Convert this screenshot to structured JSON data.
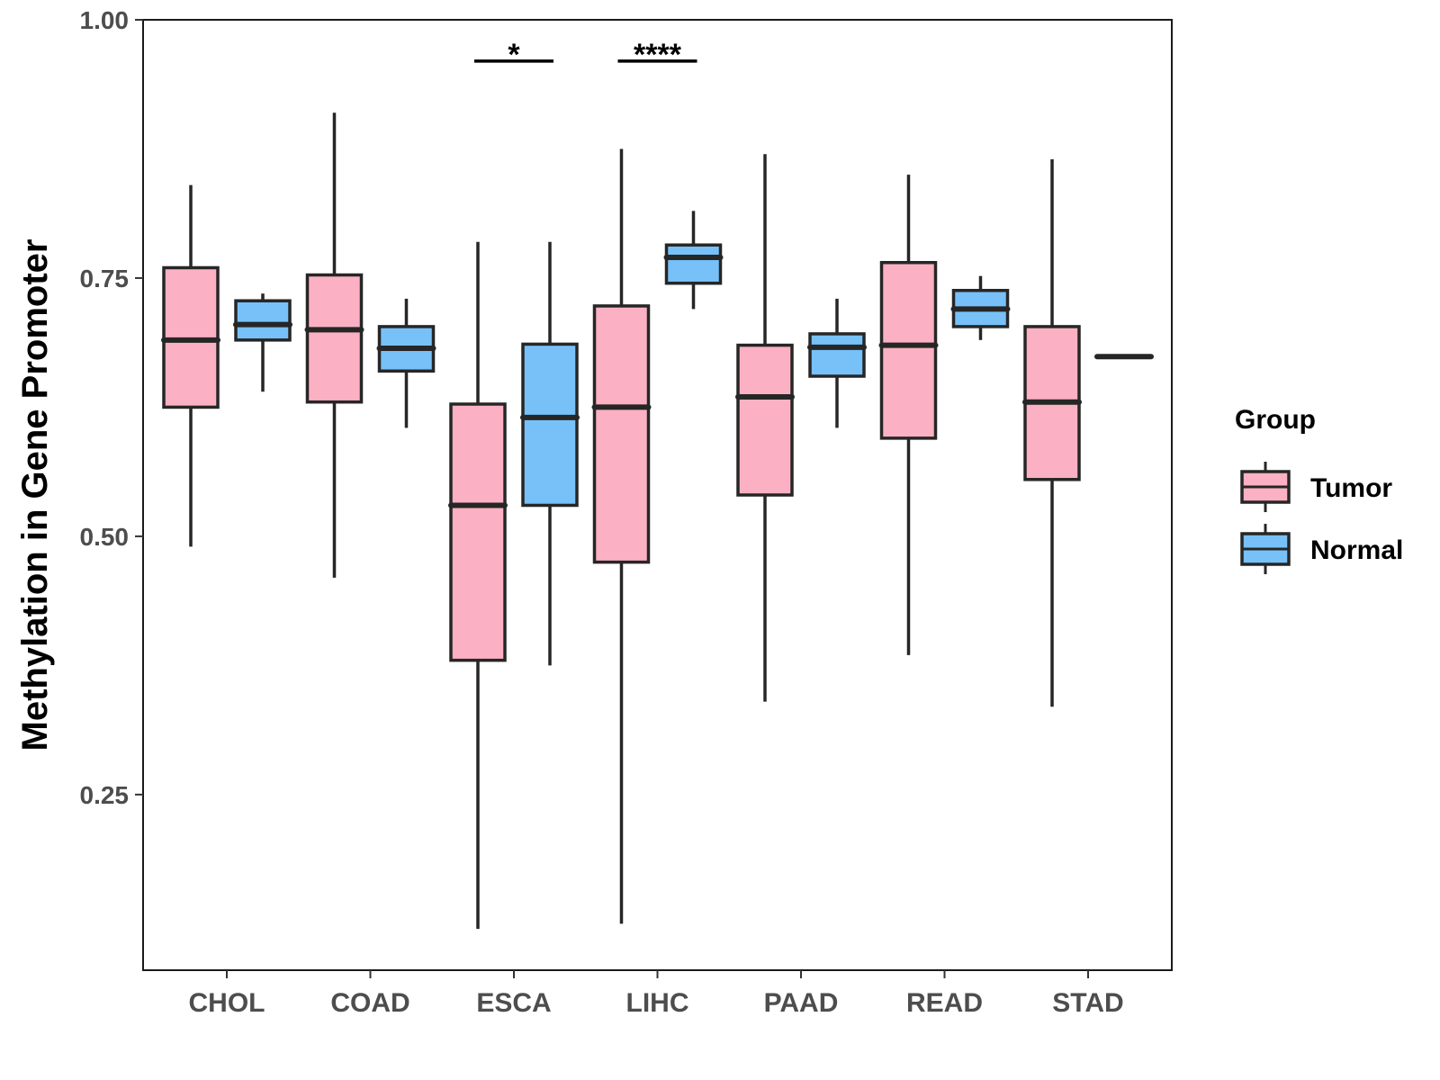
{
  "chart_data": {
    "type": "boxplot",
    "title": "",
    "xlabel": "",
    "ylabel": "Methylation in Gene Promoter",
    "ylim": [
      0.08,
      1.0
    ],
    "y_ticks": [
      0.25,
      0.5,
      0.75,
      1.0
    ],
    "y_tick_labels": [
      "0.25",
      "0.50",
      "0.75",
      "1.00"
    ],
    "grid": false,
    "legend_position": "right",
    "legend_title": "Group",
    "categories": [
      "CHOL",
      "COAD",
      "ESCA",
      "LIHC",
      "PAAD",
      "READ",
      "STAD"
    ],
    "series": [
      {
        "name": "Tumor",
        "color": "#FBB1C3",
        "boxes": [
          {
            "min": 0.49,
            "q1": 0.625,
            "median": 0.69,
            "q3": 0.76,
            "max": 0.84
          },
          {
            "min": 0.46,
            "q1": 0.63,
            "median": 0.7,
            "q3": 0.753,
            "max": 0.91
          },
          {
            "min": 0.12,
            "q1": 0.38,
            "median": 0.53,
            "q3": 0.628,
            "max": 0.785
          },
          {
            "min": 0.125,
            "q1": 0.475,
            "median": 0.625,
            "q3": 0.723,
            "max": 0.875
          },
          {
            "min": 0.34,
            "q1": 0.54,
            "median": 0.635,
            "q3": 0.685,
            "max": 0.87
          },
          {
            "min": 0.385,
            "q1": 0.595,
            "median": 0.685,
            "q3": 0.765,
            "max": 0.85
          },
          {
            "min": 0.335,
            "q1": 0.555,
            "median": 0.63,
            "q3": 0.703,
            "max": 0.865
          }
        ]
      },
      {
        "name": "Normal",
        "color": "#77C1F8",
        "boxes": [
          {
            "min": 0.64,
            "q1": 0.69,
            "median": 0.705,
            "q3": 0.728,
            "max": 0.735
          },
          {
            "min": 0.605,
            "q1": 0.66,
            "median": 0.682,
            "q3": 0.703,
            "max": 0.73
          },
          {
            "min": 0.375,
            "q1": 0.53,
            "median": 0.615,
            "q3": 0.686,
            "max": 0.785
          },
          {
            "min": 0.72,
            "q1": 0.745,
            "median": 0.77,
            "q3": 0.782,
            "max": 0.815
          },
          {
            "min": 0.605,
            "q1": 0.655,
            "median": 0.683,
            "q3": 0.696,
            "max": 0.73
          },
          {
            "min": 0.69,
            "q1": 0.703,
            "median": 0.72,
            "q3": 0.738,
            "max": 0.752
          },
          {
            "min": 0.674,
            "q1": 0.674,
            "median": 0.674,
            "q3": 0.674,
            "max": 0.674
          }
        ]
      }
    ],
    "annotations": [
      {
        "category": "ESCA",
        "label": "*",
        "y": 0.96
      },
      {
        "category": "LIHC",
        "label": "****",
        "y": 0.96
      }
    ]
  }
}
